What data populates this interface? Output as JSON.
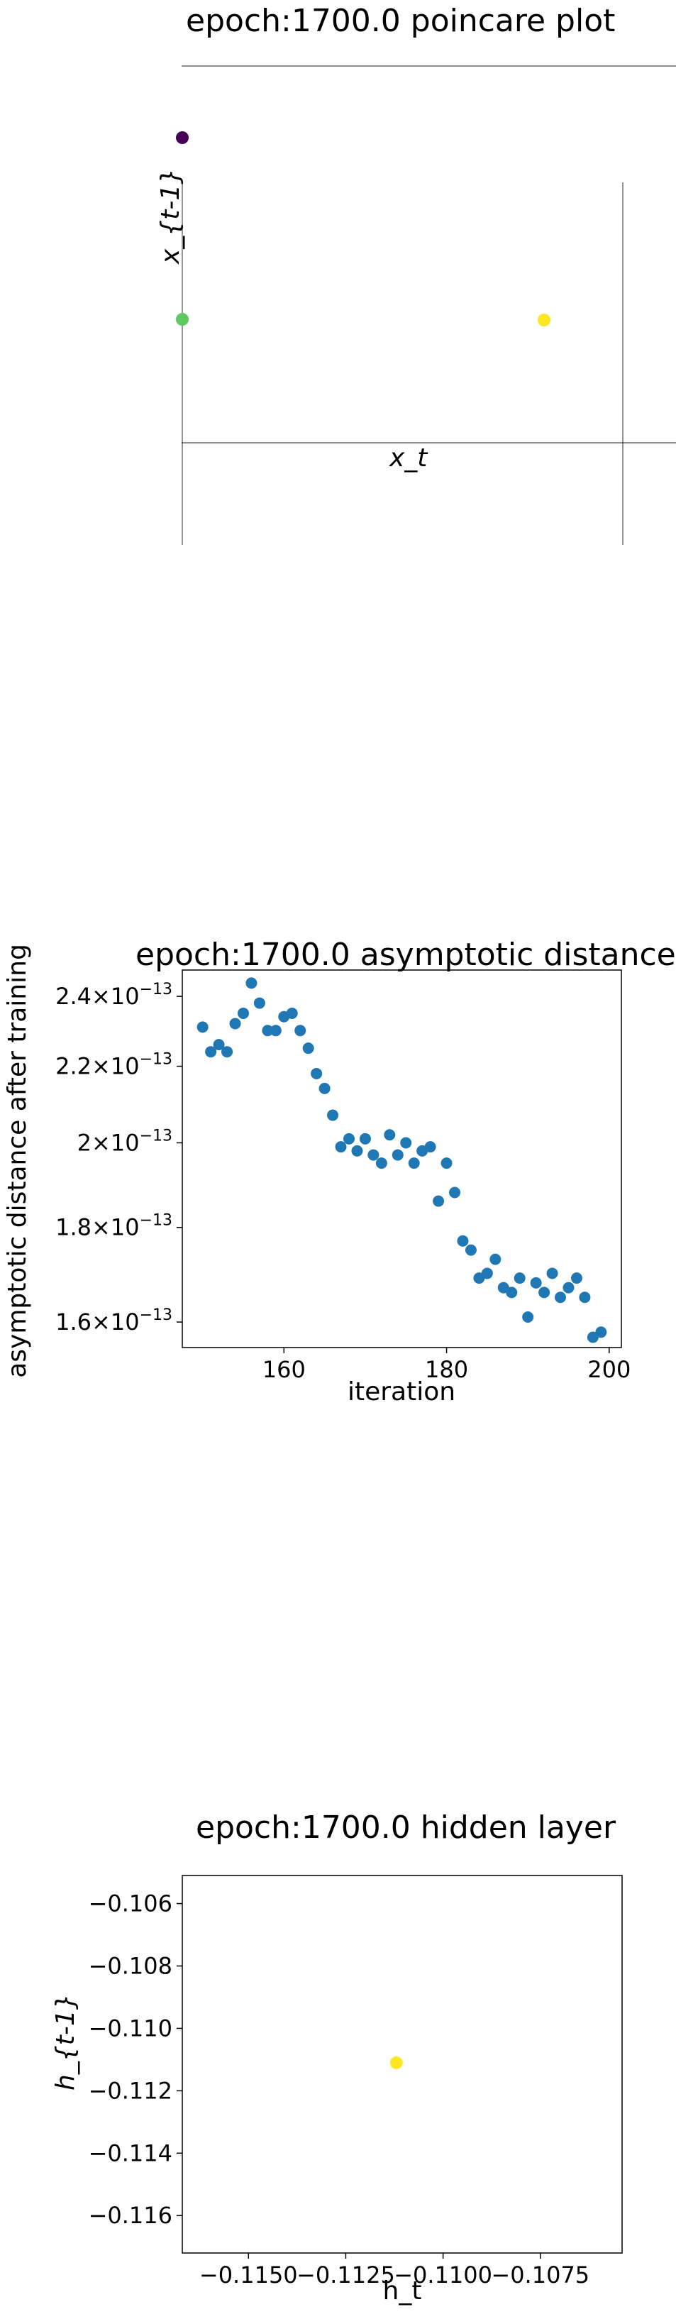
{
  "chart_data": [
    {
      "type": "scatter",
      "title": "epoch:1700.0 poincare plot",
      "xlabel": "x_t",
      "ylabel": "x_{t-1}",
      "points": [
        {
          "color": "#440154"
        },
        {
          "color": "#5ec962"
        },
        {
          "color": "#fde725"
        }
      ]
    },
    {
      "type": "scatter",
      "title": "epoch:1700.0 asymptotic distance",
      "xlabel": "iteration",
      "ylabel": "asymptotic distance after training",
      "log_y": true,
      "xlim": [
        147.5,
        201.5
      ],
      "ylim": [
        1.55e-13,
        2.48e-13
      ],
      "xticks": [
        160,
        180,
        200
      ],
      "yticks": [
        {
          "value": 2.4e-13,
          "mantissa": "2.4",
          "base": "10",
          "exp": "−13"
        },
        {
          "value": 2.2e-13,
          "mantissa": "2.2",
          "base": "10",
          "exp": "−13"
        },
        {
          "value": 2e-13,
          "mantissa": "2",
          "base": "10",
          "exp": "−13"
        },
        {
          "value": 1.8e-13,
          "mantissa": "1.8",
          "base": "10",
          "exp": "−13"
        },
        {
          "value": 1.6e-13,
          "mantissa": "1.6",
          "base": "10",
          "exp": "−13"
        }
      ],
      "color": "#1f77b4",
      "x": [
        150,
        151,
        152,
        153,
        154,
        155,
        156,
        157,
        158,
        159,
        160,
        161,
        162,
        163,
        164,
        165,
        166,
        167,
        168,
        169,
        170,
        171,
        172,
        173,
        174,
        175,
        176,
        177,
        178,
        179,
        180,
        181,
        182,
        183,
        184,
        185,
        186,
        187,
        188,
        189,
        190,
        191,
        192,
        193,
        194,
        195,
        196,
        197,
        198,
        199
      ],
      "y": [
        2.31e-13,
        2.24e-13,
        2.26e-13,
        2.24e-13,
        2.32e-13,
        2.35e-13,
        2.44e-13,
        2.38e-13,
        2.3e-13,
        2.3e-13,
        2.34e-13,
        2.35e-13,
        2.3e-13,
        2.25e-13,
        2.18e-13,
        2.14e-13,
        2.07e-13,
        1.99e-13,
        2.01e-13,
        1.98e-13,
        2.01e-13,
        1.97e-13,
        1.95e-13,
        2.02e-13,
        1.97e-13,
        2e-13,
        1.95e-13,
        1.98e-13,
        1.99e-13,
        1.86e-13,
        1.95e-13,
        1.88e-13,
        1.77e-13,
        1.75e-13,
        1.69e-13,
        1.7e-13,
        1.73e-13,
        1.67e-13,
        1.66e-13,
        1.69e-13,
        1.61e-13,
        1.68e-13,
        1.66e-13,
        1.7e-13,
        1.65e-13,
        1.67e-13,
        1.69e-13,
        1.65e-13,
        1.57e-13,
        1.58e-13
      ]
    },
    {
      "type": "scatter",
      "title": "epoch:1700.0 hidden layer",
      "xlabel": "h_t",
      "ylabel": "h_{t-1}",
      "xlim": [
        -0.1167,
        -0.1054
      ],
      "ylim": [
        -0.1172,
        -0.1051
      ],
      "xticks": [
        {
          "value": -0.115,
          "label": "−0.1150"
        },
        {
          "value": -0.1125,
          "label": "−0.1125"
        },
        {
          "value": -0.11,
          "label": "−0.1100"
        },
        {
          "value": -0.1075,
          "label": "−0.1075"
        }
      ],
      "yticks": [
        {
          "value": -0.106,
          "label": "−0.106"
        },
        {
          "value": -0.108,
          "label": "−0.108"
        },
        {
          "value": -0.11,
          "label": "−0.110"
        },
        {
          "value": -0.112,
          "label": "−0.112"
        },
        {
          "value": -0.114,
          "label": "−0.114"
        },
        {
          "value": -0.116,
          "label": "−0.116"
        }
      ],
      "points": [
        {
          "x": -0.1112,
          "y": -0.1111,
          "color": "#fde725"
        }
      ]
    }
  ]
}
